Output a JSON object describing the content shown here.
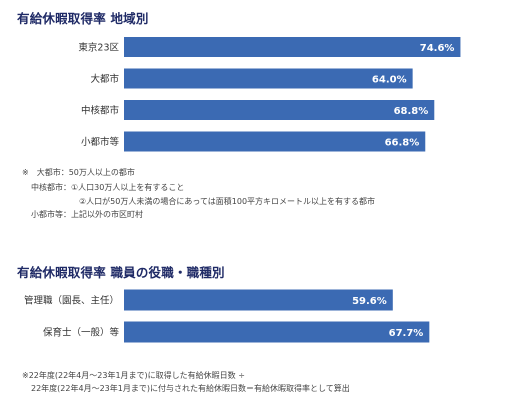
{
  "chart_data": [
    {
      "type": "bar",
      "orientation": "horizontal",
      "title": "有給休暇取得率 地域別",
      "categories": [
        "東京23区",
        "大都市",
        "中核都市",
        "小都市等"
      ],
      "values": [
        74.6,
        64.0,
        68.8,
        66.8
      ],
      "value_labels": [
        "74.6%",
        "64.0%",
        "68.8%",
        "66.8%"
      ],
      "bar_color": "#3b6ab3"
    },
    {
      "type": "bar",
      "orientation": "horizontal",
      "title": "有給休暇取得率 職員の役職・職種別",
      "categories": [
        "管理職（園長、主任）",
        "保育士（一般）等"
      ],
      "values": [
        59.6,
        67.7
      ],
      "value_labels": [
        "59.6%",
        "67.7%"
      ],
      "bar_color": "#3b6ab3"
    }
  ],
  "notes1": {
    "line1": "※　大都市：50万人以上の都市",
    "line2": "中核都市：①人口30万人以上を有すること",
    "line3": "②人口が50万人未満の場合にあっては面積100平方キロメートル以上を有する都市",
    "line4": "小都市等：上記以外の市区町村"
  },
  "notes2": {
    "line1": "※22年度(22年4月～23年1月まで)に取得した有給休暇日数 ÷",
    "line2": "22年度(22年4月～23年1月まで)に付与された有給休暇日数＝有給休暇取得率として算出"
  }
}
